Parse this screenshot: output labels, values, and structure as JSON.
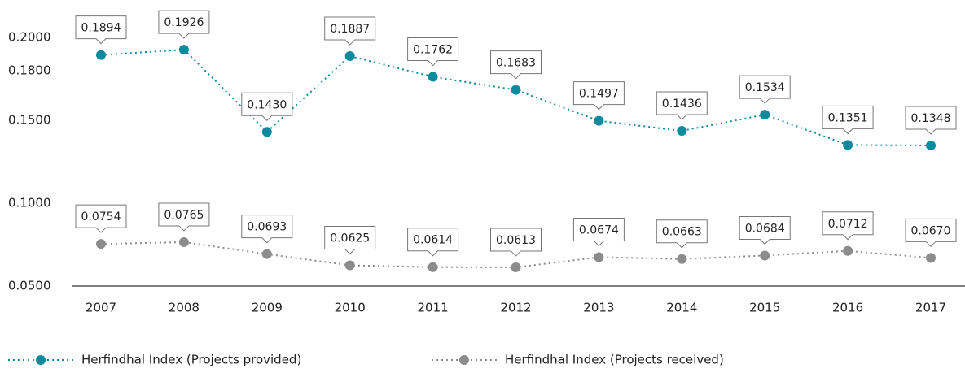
{
  "chart_data": {
    "type": "line",
    "categories": [
      "2007",
      "2008",
      "2009",
      "2010",
      "2011",
      "2012",
      "2013",
      "2014",
      "2015",
      "2016",
      "2017"
    ],
    "series": [
      {
        "name": "Herfindhal Index (Projects provided)",
        "color": "#0e8a9f",
        "values": [
          0.1894,
          0.1926,
          0.143,
          0.1887,
          0.1762,
          0.1683,
          0.1497,
          0.1436,
          0.1534,
          0.1351,
          0.1348
        ],
        "value_labels": [
          "0.1894",
          "0.1926",
          "0.1430",
          "0.1887",
          "0.1762",
          "0.1683",
          "0.1497",
          "0.1436",
          "0.1534",
          "0.1351",
          "0.1348"
        ]
      },
      {
        "name": "Herfindhal Index (Projects received)",
        "color": "#8c8c8c",
        "values": [
          0.0754,
          0.0765,
          0.0693,
          0.0625,
          0.0614,
          0.0613,
          0.0674,
          0.0663,
          0.0684,
          0.0712,
          0.067
        ],
        "value_labels": [
          "0.0754",
          "0.0765",
          "0.0693",
          "0.0625",
          "0.0614",
          "0.0613",
          "0.0674",
          "0.0663",
          "0.0684",
          "0.0712",
          "0.0670"
        ]
      }
    ],
    "ylim": [
      0.05,
      0.2
    ],
    "yticks": [
      {
        "value": 0.05,
        "label": "0.0500"
      },
      {
        "value": 0.1,
        "label": "0.1000"
      },
      {
        "value": 0.15,
        "label": "0.1500"
      },
      {
        "value": 0.18,
        "label": "0.1800"
      },
      {
        "value": 0.2,
        "label": "0.2000"
      }
    ],
    "grid": false,
    "legend": "bottom"
  }
}
